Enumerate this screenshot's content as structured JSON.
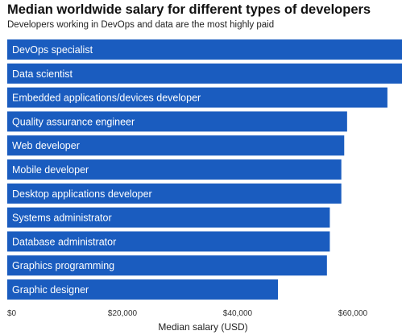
{
  "chart_data": {
    "type": "bar",
    "orientation": "horizontal",
    "title": "Median worldwide salary for different types of developers",
    "subtitle": "Developers working in DevOps and data are the most highly paid",
    "xlabel": "Median salary (USD)",
    "ylabel": "",
    "categories": [
      "DevOps specialist",
      "Data scientist",
      "Embedded applications/devices developer",
      "Quality assurance engineer",
      "Web developer",
      "Mobile developer",
      "Desktop applications developer",
      "Systems administrator",
      "Database administrator",
      "Graphics programming",
      "Graphic designer"
    ],
    "values": [
      71000,
      70000,
      66000,
      59000,
      58500,
      58000,
      58000,
      56000,
      56000,
      55500,
      47000
    ],
    "xlim": [
      0,
      75000
    ],
    "xticks": [
      0,
      20000,
      40000,
      60000
    ],
    "xtick_labels": [
      "$0",
      "$20,000",
      "$40,000",
      "$60,000"
    ],
    "bar_color": "#1a5cbf",
    "label_color": "#ffffff",
    "grid": false,
    "legend": "none"
  }
}
